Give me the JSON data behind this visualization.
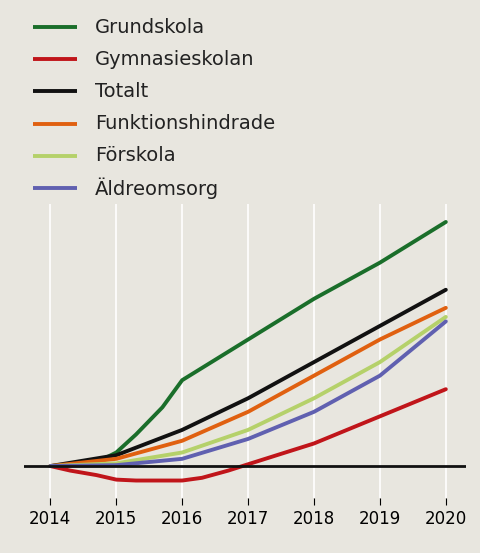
{
  "series": {
    "Grundskola": {
      "x": [
        2014,
        2014.3,
        2014.7,
        2015,
        2015.3,
        2015.7,
        2016,
        2017,
        2018,
        2019,
        2020
      ],
      "y": [
        0,
        0.1,
        0.4,
        1.5,
        3.5,
        6.5,
        9.5,
        14.0,
        18.5,
        22.5,
        27.0
      ],
      "color": "#1a6e2a",
      "linewidth": 2.8
    },
    "Gymnasieskolan": {
      "x": [
        2014,
        2014.3,
        2014.7,
        2015,
        2015.3,
        2015.7,
        2016,
        2016.3,
        2016.7,
        2017,
        2018,
        2019,
        2020
      ],
      "y": [
        0,
        -0.5,
        -1.0,
        -1.5,
        -1.6,
        -1.6,
        -1.6,
        -1.3,
        -0.5,
        0.2,
        2.5,
        5.5,
        8.5
      ],
      "color": "#c0151a",
      "linewidth": 2.8
    },
    "Totalt": {
      "x": [
        2014,
        2015,
        2016,
        2017,
        2018,
        2019,
        2020
      ],
      "y": [
        0,
        1.2,
        4.0,
        7.5,
        11.5,
        15.5,
        19.5
      ],
      "color": "#111111",
      "linewidth": 2.8
    },
    "Funktionshindrade": {
      "x": [
        2014,
        2015,
        2016,
        2017,
        2018,
        2019,
        2020
      ],
      "y": [
        0,
        0.8,
        2.8,
        6.0,
        10.0,
        14.0,
        17.5
      ],
      "color": "#e06010",
      "linewidth": 2.8
    },
    "Förskola": {
      "x": [
        2014,
        2015,
        2016,
        2017,
        2018,
        2019,
        2020
      ],
      "y": [
        0,
        0.3,
        1.5,
        4.0,
        7.5,
        11.5,
        16.5
      ],
      "color": "#b5d16a",
      "linewidth": 2.8
    },
    "Äldreomsorg": {
      "x": [
        2014,
        2015,
        2016,
        2017,
        2018,
        2019,
        2020
      ],
      "y": [
        0,
        0.1,
        0.8,
        3.0,
        6.0,
        10.0,
        16.0
      ],
      "color": "#6060b0",
      "linewidth": 2.8
    }
  },
  "legend_order": [
    "Grundskola",
    "Gymnasieskolan",
    "Totalt",
    "Funktionshindrade",
    "Förskola",
    "Äldreomsorg"
  ],
  "xlim": [
    2013.6,
    2020.3
  ],
  "ylim": [
    -3.5,
    29
  ],
  "xticks": [
    2014,
    2015,
    2016,
    2017,
    2018,
    2019,
    2020
  ],
  "background_color": "#e8e6df",
  "grid_color": "#ffffff",
  "zero_line_color": "#111111",
  "legend_fontsize": 14,
  "tick_fontsize": 12,
  "zero_linewidth": 2.0
}
